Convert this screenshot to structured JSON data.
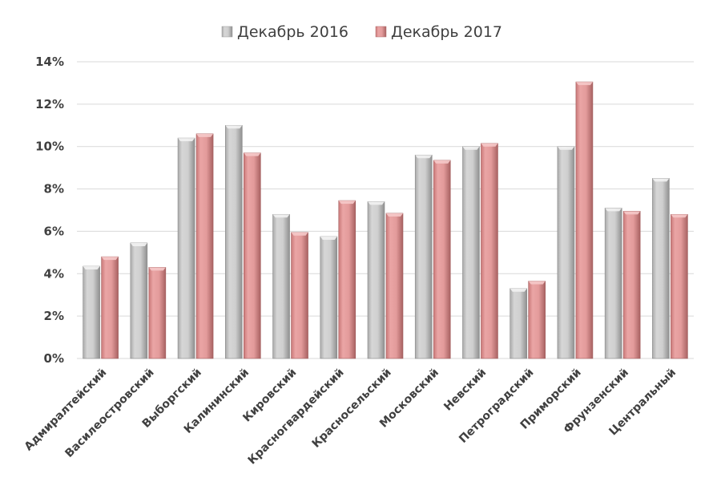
{
  "chart_data": {
    "type": "bar",
    "title": "",
    "xlabel": "",
    "ylabel": "",
    "ylim": [
      0,
      14
    ],
    "y_ticks": [
      "0%",
      "2%",
      "4%",
      "6%",
      "8%",
      "10%",
      "12%",
      "14%"
    ],
    "y_tick_values": [
      0,
      2,
      4,
      6,
      8,
      10,
      12,
      14
    ],
    "grid": true,
    "legend_position": "top-center",
    "categories": [
      "Адмиралтейский",
      "Василеостровский",
      "Выборгский",
      "Калининский",
      "Кировский",
      "Красногвардейский",
      "Красносельский",
      "Московский",
      "Невский",
      "Петроградский",
      "Приморский",
      "Фрунзенский",
      "Центральный"
    ],
    "series": [
      {
        "name": "Декабрь 2016",
        "color": "#c8c8c8",
        "values": [
          4.35,
          5.45,
          10.4,
          11.0,
          6.8,
          5.75,
          7.4,
          9.6,
          10.0,
          3.3,
          10.0,
          7.1,
          8.5
        ]
      },
      {
        "name": "Декабрь 2017",
        "color": "#e5999a",
        "values": [
          4.8,
          4.3,
          10.6,
          9.7,
          5.95,
          7.45,
          6.85,
          9.35,
          10.15,
          3.65,
          13.05,
          6.95,
          6.8
        ]
      }
    ]
  }
}
